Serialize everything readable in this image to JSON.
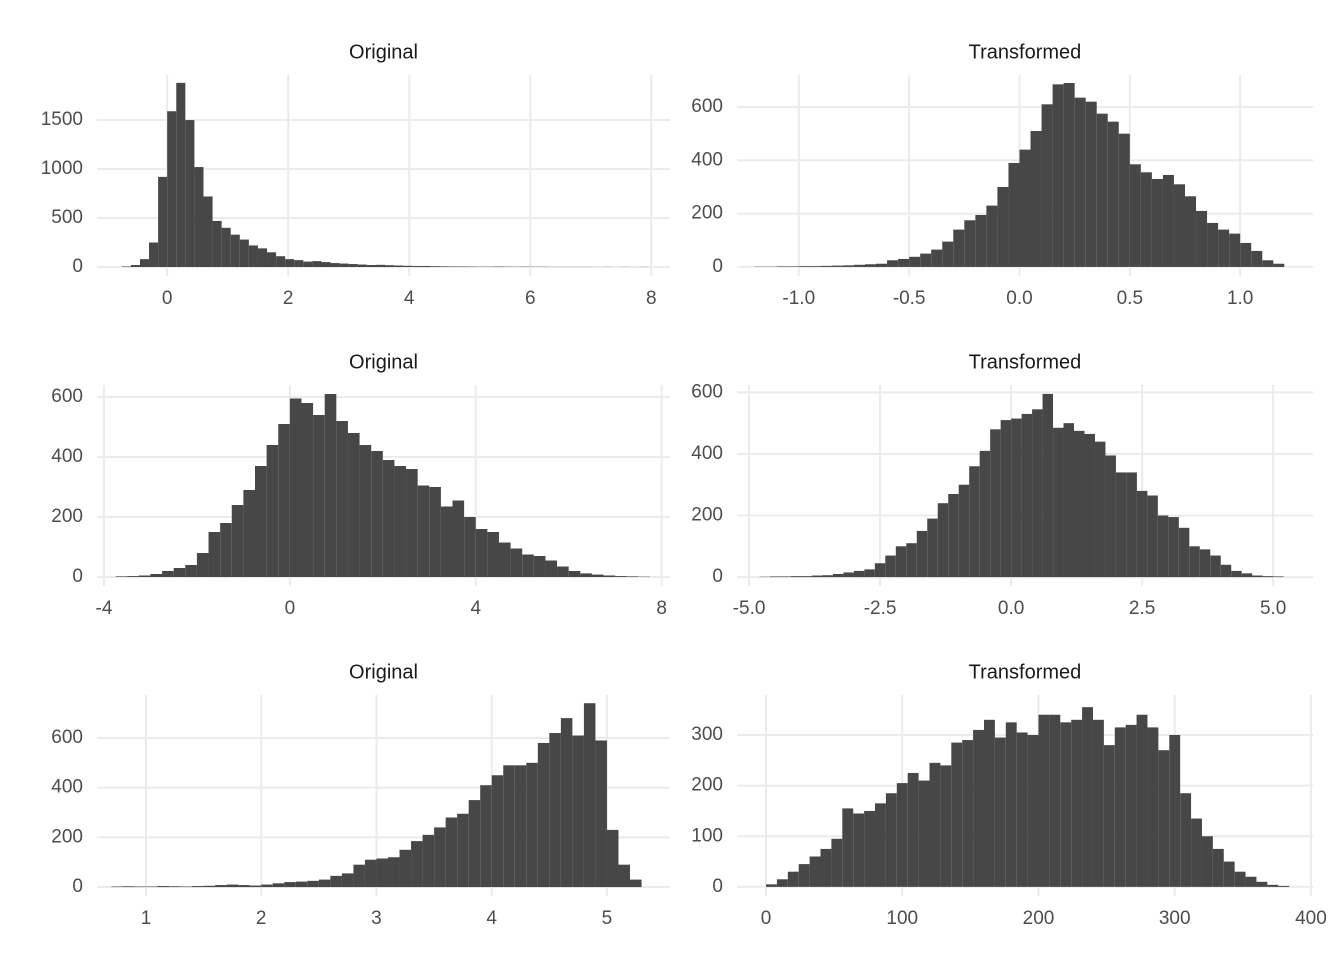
{
  "chart_data": [
    {
      "type": "histogram",
      "title": "Original",
      "color": "#474747",
      "grid": true,
      "bins": [
        -0.75,
        -0.6,
        -0.45,
        -0.3,
        -0.15,
        0,
        0.15,
        0.3,
        0.45,
        0.6,
        0.75,
        0.9,
        1.05,
        1.2,
        1.35,
        1.5,
        1.65,
        1.8,
        1.95,
        2.1,
        2.25,
        2.4,
        2.55,
        2.7,
        2.85,
        3,
        3.15,
        3.3,
        3.45,
        3.6,
        3.75,
        3.9,
        4.05,
        4.2,
        4.35,
        4.5,
        4.65,
        4.8,
        4.95,
        5.1,
        5.25,
        5.4,
        5.55,
        5.7,
        5.85,
        6,
        6.15,
        6.3,
        6.45,
        6.6,
        6.75,
        6.9,
        7.05,
        7.2,
        7.35,
        7.5,
        7.65,
        7.8,
        7.95
      ],
      "values": [
        5,
        20,
        80,
        250,
        920,
        1590,
        1880,
        1500,
        1020,
        720,
        470,
        400,
        330,
        280,
        220,
        190,
        150,
        110,
        80,
        70,
        55,
        60,
        50,
        40,
        35,
        30,
        25,
        20,
        22,
        18,
        15,
        12,
        10,
        10,
        8,
        6,
        5,
        5,
        4,
        3,
        3,
        4,
        3,
        2,
        3,
        2,
        2,
        1,
        1,
        1,
        1,
        1,
        0,
        1,
        0,
        1,
        0,
        1
      ],
      "xlim": [
        -1.16,
        8.31
      ],
      "ylim": [
        -92,
        1960
      ],
      "xticks": [
        0,
        2,
        4,
        6,
        8
      ],
      "yticks": [
        0,
        500,
        1000,
        1500
      ]
    },
    {
      "type": "histogram",
      "title": "Transformed",
      "color": "#474747",
      "grid": true,
      "bins": [
        -1.2,
        -1.15,
        -1.1,
        -1.05,
        -1,
        -0.95,
        -0.9,
        -0.85,
        -0.8,
        -0.75,
        -0.7,
        -0.65,
        -0.6,
        -0.55,
        -0.5,
        -0.45,
        -0.4,
        -0.35,
        -0.3,
        -0.25,
        -0.2,
        -0.15,
        -0.1,
        -0.05,
        0,
        0.05,
        0.1,
        0.15,
        0.2,
        0.25,
        0.3,
        0.35,
        0.4,
        0.45,
        0.5,
        0.55,
        0.6,
        0.65,
        0.7,
        0.75,
        0.8,
        0.85,
        0.9,
        0.95,
        1,
        1.05,
        1.1,
        1.15,
        1.2
      ],
      "values": [
        1,
        1,
        2,
        2,
        3,
        3,
        4,
        5,
        6,
        8,
        10,
        12,
        25,
        30,
        38,
        50,
        65,
        95,
        140,
        175,
        195,
        230,
        300,
        390,
        440,
        510,
        610,
        685,
        690,
        635,
        620,
        575,
        545,
        500,
        385,
        355,
        330,
        345,
        310,
        265,
        210,
        165,
        140,
        125,
        90,
        60,
        25,
        12
      ],
      "xlim": [
        -1.28,
        1.33
      ],
      "ylim": [
        -34,
        720
      ],
      "xticks": [
        {
          "value": -1,
          "label": "-1.0"
        },
        -0.5,
        {
          "value": 0,
          "label": "0.0"
        },
        0.5,
        {
          "value": 1,
          "label": "1.0"
        }
      ],
      "yticks": [
        0,
        200,
        400,
        600
      ]
    },
    {
      "type": "histogram",
      "title": "Original",
      "color": "#474747",
      "grid": true,
      "bins": [
        -3.75,
        -3.5,
        -3.25,
        -3,
        -2.75,
        -2.5,
        -2.25,
        -2,
        -1.75,
        -1.5,
        -1.25,
        -1,
        -0.75,
        -0.5,
        -0.25,
        0,
        0.25,
        0.5,
        0.75,
        1,
        1.25,
        1.5,
        1.75,
        2,
        2.25,
        2.5,
        2.75,
        3,
        3.25,
        3.5,
        3.75,
        4,
        4.25,
        4.5,
        4.75,
        5,
        5.25,
        5.5,
        5.75,
        6,
        6.25,
        6.5,
        6.75,
        7,
        7.25,
        7.5,
        7.75
      ],
      "values": [
        2,
        3,
        5,
        10,
        20,
        30,
        40,
        80,
        150,
        180,
        240,
        290,
        370,
        440,
        510,
        595,
        580,
        540,
        610,
        520,
        480,
        440,
        420,
        390,
        370,
        360,
        305,
        300,
        235,
        255,
        200,
        160,
        150,
        115,
        95,
        75,
        70,
        55,
        35,
        20,
        12,
        8,
        5,
        3,
        2,
        1
      ],
      "xlim": [
        -4.15,
        8.18
      ],
      "ylim": [
        -30,
        640
      ],
      "xticks": [
        -4,
        0,
        4,
        8
      ],
      "yticks": [
        0,
        200,
        400,
        600
      ]
    },
    {
      "type": "histogram",
      "title": "Transformed",
      "color": "#474747",
      "grid": true,
      "bins": [
        -4.8,
        -4.6,
        -4.4,
        -4.2,
        -4,
        -3.8,
        -3.6,
        -3.4,
        -3.2,
        -3,
        -2.8,
        -2.6,
        -2.4,
        -2.2,
        -2,
        -1.8,
        -1.6,
        -1.4,
        -1.2,
        -1,
        -0.8,
        -0.6,
        -0.4,
        -0.2,
        0,
        0.2,
        0.4,
        0.6,
        0.8,
        1,
        1.2,
        1.4,
        1.6,
        1.8,
        2,
        2.2,
        2.4,
        2.6,
        2.8,
        3,
        3.2,
        3.4,
        3.6,
        3.8,
        4,
        4.2,
        4.4,
        4.6,
        4.8,
        5,
        5.2
      ],
      "values": [
        1,
        2,
        2,
        3,
        3,
        5,
        6,
        10,
        15,
        20,
        25,
        45,
        70,
        100,
        110,
        150,
        190,
        240,
        270,
        300,
        360,
        410,
        480,
        510,
        515,
        530,
        545,
        595,
        485,
        500,
        475,
        465,
        440,
        395,
        340,
        340,
        280,
        265,
        200,
        195,
        160,
        100,
        90,
        70,
        40,
        20,
        12,
        5,
        3,
        2
      ],
      "xlim": [
        -5.23,
        5.76
      ],
      "ylim": [
        -29,
        624
      ],
      "xticks": [
        {
          "value": -5,
          "label": "-5.0"
        },
        -2.5,
        {
          "value": 0,
          "label": "0.0"
        },
        2.5,
        {
          "value": 5,
          "label": "5.0"
        }
      ],
      "yticks": [
        0,
        200,
        400,
        600
      ]
    },
    {
      "type": "histogram",
      "title": "Original",
      "color": "#474747",
      "grid": true,
      "bins": [
        0.7,
        0.8,
        0.9,
        1,
        1.1,
        1.2,
        1.3,
        1.4,
        1.5,
        1.6,
        1.7,
        1.8,
        1.9,
        2,
        2.1,
        2.2,
        2.3,
        2.4,
        2.5,
        2.6,
        2.7,
        2.8,
        2.9,
        3,
        3.1,
        3.2,
        3.3,
        3.4,
        3.5,
        3.6,
        3.7,
        3.8,
        3.9,
        4,
        4.1,
        4.2,
        4.3,
        4.4,
        4.5,
        4.6,
        4.7,
        4.8,
        4.9,
        5,
        5.1,
        5.2,
        5.3
      ],
      "values": [
        2,
        3,
        2,
        2,
        4,
        3,
        2,
        4,
        5,
        8,
        10,
        8,
        6,
        10,
        15,
        20,
        22,
        25,
        30,
        45,
        55,
        90,
        110,
        115,
        120,
        150,
        185,
        210,
        240,
        280,
        295,
        350,
        410,
        450,
        490,
        490,
        500,
        580,
        620,
        680,
        610,
        740,
        590,
        230,
        90,
        30
      ],
      "xlim": [
        0.575,
        5.547
      ],
      "ylim": [
        -36,
        773
      ],
      "xticks": [
        1,
        2,
        3,
        4,
        5
      ],
      "yticks": [
        0,
        200,
        400,
        600
      ]
    },
    {
      "type": "histogram",
      "title": "Transformed",
      "color": "#474747",
      "grid": true,
      "bins": [
        0,
        8,
        16,
        24,
        32,
        40,
        48,
        56,
        64,
        72,
        80,
        88,
        96,
        104,
        112,
        120,
        128,
        136,
        144,
        152,
        160,
        168,
        176,
        184,
        192,
        200,
        208,
        216,
        224,
        232,
        240,
        248,
        256,
        264,
        272,
        280,
        288,
        296,
        304,
        312,
        320,
        328,
        336,
        344,
        352,
        360,
        368,
        376,
        384
      ],
      "values": [
        5,
        15,
        30,
        45,
        60,
        75,
        95,
        155,
        145,
        150,
        165,
        185,
        205,
        225,
        210,
        245,
        240,
        285,
        290,
        310,
        330,
        295,
        325,
        305,
        300,
        340,
        340,
        325,
        330,
        355,
        330,
        280,
        315,
        320,
        340,
        315,
        270,
        300,
        185,
        135,
        100,
        75,
        50,
        30,
        20,
        10,
        4,
        2
      ],
      "xlim": [
        -21.3,
        401.5
      ],
      "ylim": [
        -18,
        379
      ],
      "xticks": [
        0,
        100,
        200,
        300,
        400
      ],
      "yticks": [
        0,
        100,
        200,
        300
      ]
    }
  ]
}
